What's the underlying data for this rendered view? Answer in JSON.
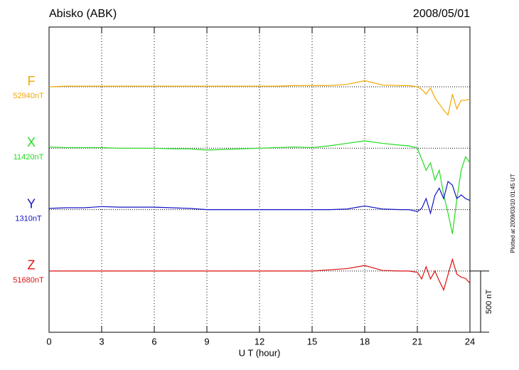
{
  "chart_data": {
    "type": "line",
    "title": "Abisko (ABK)",
    "date": "2008/05/01",
    "x_label": "U T (hour)",
    "footnote": "Plotted at 2009/03/10 01:45 UT",
    "xlim": [
      0,
      24
    ],
    "xticks": [
      0,
      3,
      6,
      9,
      12,
      15,
      18,
      21,
      24
    ],
    "grid": true,
    "scale_bar": {
      "value": 500,
      "label": "500 nT"
    },
    "x": [
      0,
      1,
      2,
      3,
      4,
      5,
      6,
      7,
      8,
      9,
      10,
      11,
      12,
      13,
      14,
      15,
      16,
      17,
      18,
      19,
      20,
      20.5,
      21,
      21.25,
      21.5,
      21.75,
      22,
      22.25,
      22.5,
      22.75,
      23,
      23.25,
      23.5,
      23.75,
      24
    ],
    "series": [
      {
        "name": "F",
        "color": "#f2a900",
        "baseline": 52940,
        "baseline_label": "52940nT",
        "values": [
          52940,
          52945,
          52945,
          52945,
          52945,
          52945,
          52945,
          52945,
          52945,
          52945,
          52945,
          52945,
          52945,
          52945,
          52950,
          52950,
          52950,
          52960,
          52990,
          52955,
          52950,
          52950,
          52940,
          52920,
          52880,
          52930,
          52850,
          52800,
          52750,
          52710,
          52880,
          52760,
          52830,
          52830,
          52840
        ]
      },
      {
        "name": "X",
        "color": "#22dd22",
        "baseline": 11420,
        "baseline_label": "11420nT",
        "values": [
          11430,
          11425,
          11425,
          11425,
          11420,
          11420,
          11420,
          11415,
          11415,
          11405,
          11410,
          11415,
          11420,
          11425,
          11430,
          11425,
          11440,
          11460,
          11480,
          11460,
          11445,
          11440,
          11420,
          11330,
          11240,
          11300,
          11160,
          11240,
          11040,
          10890,
          10720,
          11000,
          11240,
          11350,
          11300
        ]
      },
      {
        "name": "Y",
        "color": "#1414c8",
        "baseline": 1310,
        "baseline_label": "1310nT",
        "values": [
          1320,
          1325,
          1325,
          1335,
          1330,
          1330,
          1330,
          1325,
          1320,
          1310,
          1310,
          1310,
          1310,
          1310,
          1310,
          1310,
          1310,
          1315,
          1340,
          1315,
          1310,
          1310,
          1295,
          1320,
          1400,
          1280,
          1425,
          1485,
          1400,
          1540,
          1510,
          1400,
          1430,
          1400,
          1385
        ]
      },
      {
        "name": "Z",
        "color": "#dd1111",
        "baseline": 51680,
        "baseline_label": "51680nT",
        "values": [
          51680,
          51680,
          51680,
          51680,
          51680,
          51680,
          51680,
          51680,
          51680,
          51680,
          51680,
          51680,
          51680,
          51680,
          51680,
          51680,
          51690,
          51700,
          51725,
          51685,
          51680,
          51680,
          51670,
          51615,
          51715,
          51615,
          51680,
          51600,
          51525,
          51650,
          51775,
          51655,
          51630,
          51620,
          51580
        ]
      }
    ]
  }
}
